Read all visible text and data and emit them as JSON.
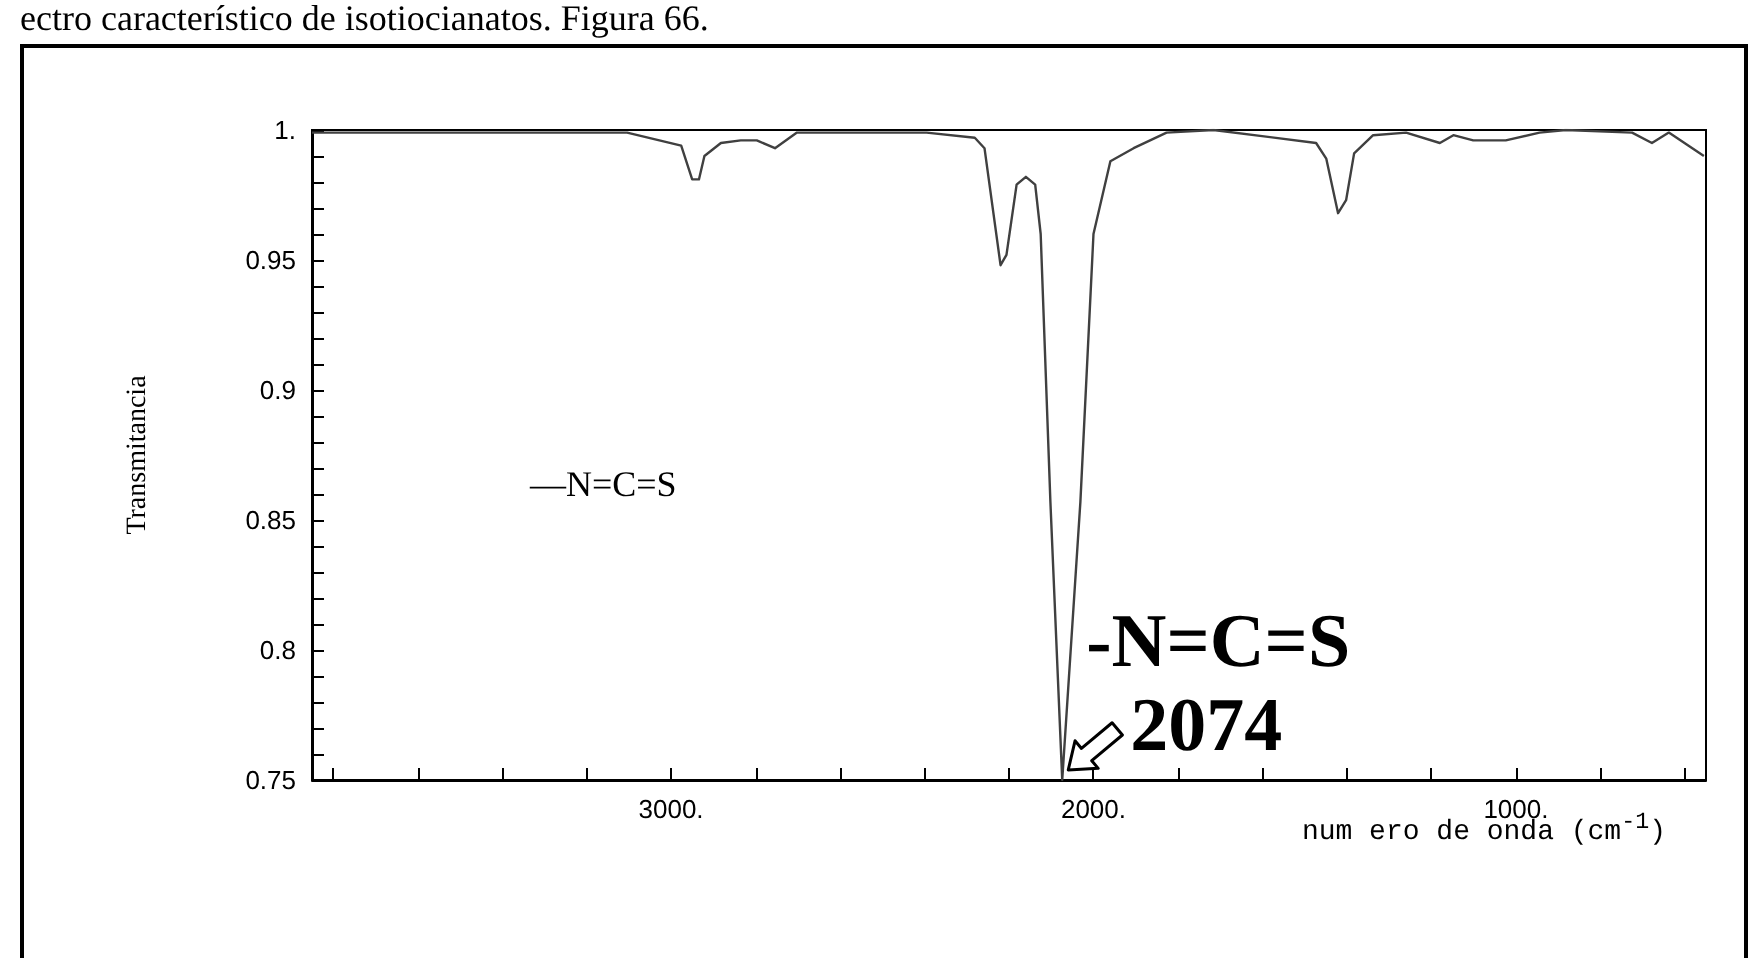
{
  "chart_data": {
    "type": "line",
    "ylabel": "Transmitancia",
    "xlabel": "num ero de onda (cm$^{-1}$)",
    "annotations": [
      "ectro característico de isotiocianatos. Figura 66.",
      "—N=C=S",
      {
        "text": "-N=C=S",
        "x": 2074,
        "y": 0.75
      },
      {
        "text": "2074",
        "x": 2074,
        "y": 0.75
      }
    ],
    "x": [
      3850,
      3104,
      2976,
      2950,
      2934,
      2921,
      2882,
      2835,
      2797,
      2754,
      2702,
      2584,
      2395,
      2281,
      2258,
      2220,
      2206,
      2182,
      2160,
      2138,
      2125,
      2102,
      2074,
      2031,
      2000,
      1960,
      1905,
      1827,
      1716,
      1473,
      1449,
      1421,
      1402,
      1383,
      1338,
      1260,
      1180,
      1148,
      1101,
      1024,
      944,
      882,
      725,
      678,
      638,
      555
    ],
    "series": [
      {
        "color": "#404040",
        "values": [
          0.999,
          0.999,
          0.994,
          0.981,
          0.981,
          0.99,
          0.995,
          0.996,
          0.996,
          0.993,
          0.999,
          0.999,
          0.999,
          0.997,
          0.993,
          0.948,
          0.952,
          0.979,
          0.982,
          0.979,
          0.96,
          0.857,
          0.75,
          0.857,
          0.96,
          0.988,
          0.993,
          0.999,
          1.0,
          0.995,
          0.989,
          0.968,
          0.973,
          0.991,
          0.998,
          0.999,
          0.995,
          0.998,
          0.996,
          0.996,
          0.999,
          1.0,
          0.999,
          0.995,
          0.999,
          0.99
        ]
      }
    ],
    "xlim": [
      3850,
      550
    ],
    "xticks": [
      {
        "value": 3800,
        "label": null
      },
      {
        "value": 3600,
        "label": null
      },
      {
        "value": 3400,
        "label": null
      },
      {
        "value": 3200,
        "label": null
      },
      {
        "value": 3000,
        "label": "3000."
      },
      {
        "value": 2800,
        "label": null
      },
      {
        "value": 2600,
        "label": null
      },
      {
        "value": 2400,
        "label": null
      },
      {
        "value": 2200,
        "label": null
      },
      {
        "value": 2000,
        "label": "2000."
      },
      {
        "value": 1800,
        "label": null
      },
      {
        "value": 1600,
        "label": null
      },
      {
        "value": 1400,
        "label": null
      },
      {
        "value": 1200,
        "label": null
      },
      {
        "value": 1000,
        "label": "1000."
      },
      {
        "value": 800,
        "label": null
      },
      {
        "value": 600,
        "label": null
      }
    ],
    "ylim": [
      0.75,
      1.0
    ],
    "yticks": [
      0.75,
      {
        "value": 0.76,
        "label": null
      },
      {
        "value": 0.77,
        "label": null
      },
      {
        "value": 0.78,
        "label": null
      },
      {
        "value": 0.79,
        "label": null
      },
      0.8,
      {
        "value": 0.81,
        "label": null
      },
      {
        "value": 0.82,
        "label": null
      },
      {
        "value": 0.83,
        "label": null
      },
      {
        "value": 0.84,
        "label": null
      },
      0.85,
      {
        "value": 0.86,
        "label": null
      },
      {
        "value": 0.87,
        "label": null
      },
      {
        "value": 0.88,
        "label": null
      },
      {
        "value": 0.89,
        "label": null
      },
      0.9,
      {
        "value": 0.91,
        "label": null
      },
      {
        "value": 0.92,
        "label": null
      },
      {
        "value": 0.93,
        "label": null
      },
      {
        "value": 0.94,
        "label": null
      },
      0.95,
      {
        "value": 0.96,
        "label": null
      },
      {
        "value": 0.97,
        "label": null
      },
      {
        "value": 0.98,
        "label": null
      },
      {
        "value": 0.99,
        "label": null
      },
      {
        "value": 1.0,
        "label": "1."
      }
    ],
    "marker": "none",
    "line_style": "solid"
  }
}
